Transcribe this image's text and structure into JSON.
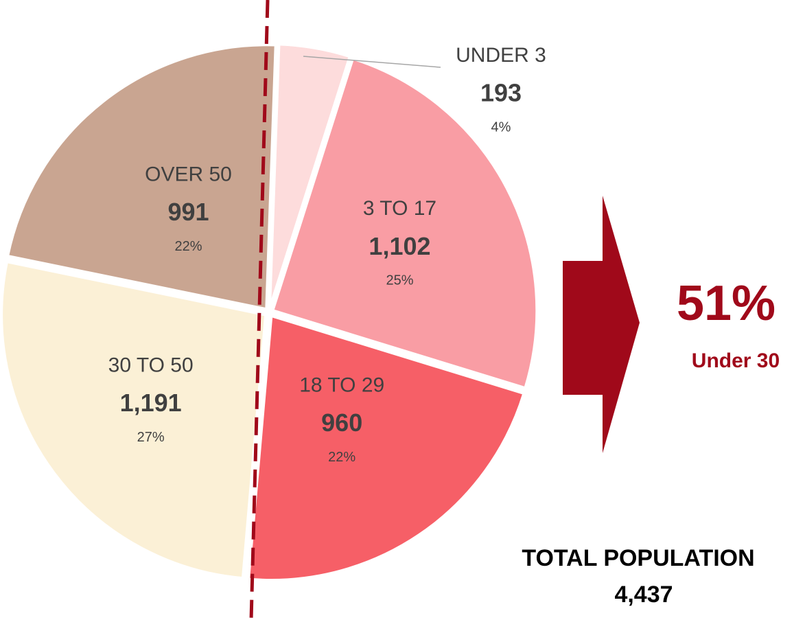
{
  "chart_data": {
    "type": "pie",
    "categories": [
      "UNDER 3",
      "3 TO 17",
      "18 TO 29",
      "30 TO 50",
      "OVER 50"
    ],
    "values": [
      193,
      1102,
      960,
      1191,
      991
    ],
    "value_labels": [
      "193",
      "1,102",
      "960",
      "1,191",
      "991"
    ],
    "percent_labels": [
      "4%",
      "25%",
      "22%",
      "27%",
      "22%"
    ],
    "colors": [
      "#fddcdc",
      "#f99da4",
      "#f65f67",
      "#fbf0d6",
      "#c9a591"
    ],
    "annotations": {
      "share": "51%",
      "share_label": "Under 30",
      "total_title": "TOTAL POPULATION",
      "total": "4,437"
    }
  }
}
